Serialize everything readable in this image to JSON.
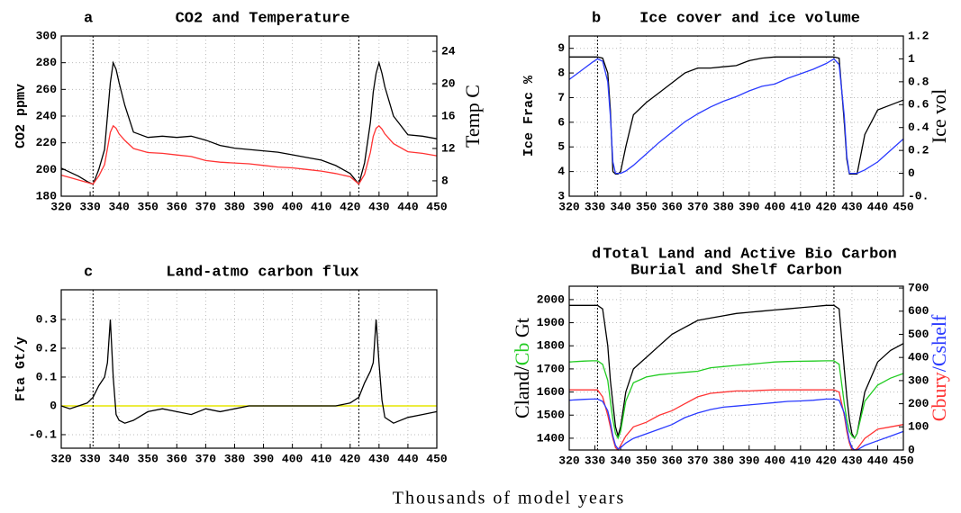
{
  "xlabel": "Thousands of model years",
  "chart_data": [
    {
      "type": "line",
      "label": "a",
      "title": "CO2 and Temperature",
      "ylabel": "CO2 ppmv",
      "y2label": "Temp C",
      "y2label_color": "#ff3333",
      "x": [
        320,
        323,
        326,
        329,
        331,
        333,
        335,
        336,
        337,
        338,
        339,
        340,
        342,
        345,
        350,
        355,
        360,
        365,
        370,
        375,
        380,
        385,
        390,
        395,
        400,
        405,
        410,
        415,
        420,
        423,
        425,
        427,
        428,
        429,
        430,
        431,
        432,
        435,
        440,
        445,
        450
      ],
      "series": [
        {
          "name": "CO2",
          "color": "#000000",
          "values": [
            201,
            198,
            195,
            191,
            189,
            200,
            215,
            240,
            265,
            280,
            275,
            265,
            248,
            228,
            224,
            225,
            224,
            225,
            222,
            218,
            216,
            215,
            214,
            213,
            211,
            209,
            207,
            203,
            197,
            189,
            205,
            235,
            258,
            272,
            280,
            272,
            262,
            240,
            226,
            225,
            223
          ]
        },
        {
          "name": "Temp",
          "color": "#ff3333",
          "axis": "y2",
          "values": [
            8.7,
            8.4,
            8.1,
            7.8,
            7.6,
            8.6,
            10.0,
            12,
            14,
            14.8,
            14.5,
            13.8,
            13.0,
            12.0,
            11.5,
            11.4,
            11.2,
            11.0,
            10.5,
            10.3,
            10.2,
            10.1,
            9.9,
            9.7,
            9.6,
            9.4,
            9.2,
            8.9,
            8.5,
            7.6,
            8.8,
            11.5,
            13.5,
            14.5,
            14.8,
            14.4,
            13.8,
            12.6,
            11.6,
            11.4,
            11.1
          ]
        }
      ],
      "xlim": [
        320,
        450
      ],
      "xticks": [
        320,
        330,
        340,
        350,
        360,
        370,
        380,
        390,
        400,
        410,
        420,
        430,
        440,
        450
      ],
      "ylim": [
        180,
        300
      ],
      "yticks": [
        180,
        200,
        220,
        240,
        260,
        280,
        300
      ],
      "y2lim": [
        6.1,
        25.9
      ],
      "y2ticks": [
        8,
        12,
        16,
        20,
        24
      ],
      "vlines": [
        331,
        423
      ],
      "grid": true
    },
    {
      "type": "line",
      "label": "b",
      "title": "Ice cover and ice volume",
      "ylabel": "Ice Frac %",
      "y2label": "Ice vol",
      "y2label_color": "#2a3aff",
      "x": [
        320,
        323,
        326,
        329,
        331,
        333,
        335,
        336,
        337,
        338,
        339,
        340,
        342,
        345,
        350,
        355,
        360,
        365,
        370,
        375,
        380,
        385,
        390,
        395,
        400,
        405,
        410,
        415,
        420,
        423,
        425,
        427,
        428,
        429,
        430,
        431,
        432,
        435,
        440,
        445,
        450
      ],
      "series": [
        {
          "name": "Ice Frac",
          "color": "#000000",
          "values": [
            8.65,
            8.65,
            8.65,
            8.65,
            8.65,
            8.6,
            8.0,
            6.5,
            4.0,
            3.9,
            3.9,
            4.0,
            5.0,
            6.3,
            6.8,
            7.2,
            7.6,
            8.0,
            8.2,
            8.2,
            8.25,
            8.3,
            8.5,
            8.6,
            8.65,
            8.65,
            8.65,
            8.65,
            8.65,
            8.65,
            8.6,
            6.0,
            4.5,
            3.9,
            3.9,
            3.9,
            3.9,
            5.5,
            6.5,
            6.7,
            6.9
          ]
        },
        {
          "name": "Ice vol",
          "color": "#2a3aff",
          "axis": "y2",
          "values": [
            0.82,
            0.87,
            0.92,
            0.97,
            1.0,
            0.98,
            0.8,
            0.5,
            0.1,
            0,
            0,
            0,
            0.02,
            0.07,
            0.17,
            0.27,
            0.36,
            0.45,
            0.52,
            0.58,
            0.63,
            0.67,
            0.72,
            0.76,
            0.78,
            0.83,
            0.87,
            0.91,
            0.96,
            1.0,
            0.95,
            0.5,
            0.15,
            0,
            0,
            0,
            0,
            0.03,
            0.1,
            0.2,
            0.3
          ]
        }
      ],
      "xlim": [
        320,
        450
      ],
      "xticks": [
        320,
        330,
        340,
        350,
        360,
        370,
        380,
        390,
        400,
        410,
        420,
        430,
        440,
        450
      ],
      "ylim": [
        3,
        9.5
      ],
      "yticks": [
        3,
        4,
        5,
        6,
        7,
        8,
        9
      ],
      "y2lim": [
        -0.2,
        1.2
      ],
      "y2ticks": [
        {
          "value": -0.2,
          "label": "-0."
        },
        0,
        0.2,
        0.4,
        0.6,
        0.8,
        1,
        1.2
      ],
      "vlines": [
        331,
        423
      ],
      "grid": true
    },
    {
      "type": "line",
      "label": "c",
      "title": "Land-atmo carbon flux",
      "ylabel": "Fta Gt/y",
      "x": [
        320,
        323,
        326,
        329,
        331,
        333,
        335,
        336,
        337,
        338,
        339,
        340,
        342,
        345,
        350,
        355,
        360,
        365,
        370,
        375,
        380,
        385,
        390,
        395,
        400,
        405,
        410,
        415,
        420,
        423,
        425,
        427,
        428,
        429,
        430,
        431,
        432,
        435,
        440,
        445,
        450
      ],
      "series": [
        {
          "name": "Fta",
          "color": "#000000",
          "values": [
            0,
            -0.01,
            0,
            0.01,
            0.03,
            0.07,
            0.1,
            0.15,
            0.3,
            0.1,
            -0.03,
            -0.05,
            -0.06,
            -0.05,
            -0.02,
            -0.01,
            -0.02,
            -0.03,
            -0.01,
            -0.02,
            -0.01,
            0,
            0,
            0,
            0,
            0,
            0,
            0,
            0.01,
            0.03,
            0.08,
            0.12,
            0.15,
            0.3,
            0.15,
            0.02,
            -0.04,
            -0.06,
            -0.04,
            -0.03,
            -0.02
          ]
        }
      ],
      "xlim": [
        320,
        450
      ],
      "xticks": [
        320,
        330,
        340,
        350,
        360,
        370,
        380,
        390,
        400,
        410,
        420,
        430,
        440,
        450
      ],
      "ylim": [
        -0.147,
        0.403
      ],
      "yticks": [
        -0.1,
        0,
        0.1,
        0.2,
        0.3
      ],
      "hline": 0,
      "hline_color": "#e6e600",
      "vlines": [
        331,
        423
      ],
      "grid": true
    },
    {
      "type": "line",
      "label": "d",
      "title": "Total Land and Active Bio Carbon",
      "subtitle": "Burial and Shelf Carbon",
      "ylabel": [
        "Cland/",
        "Cb",
        " Gt"
      ],
      "ylabel_colors": [
        "#000000",
        "#22cc22",
        "#000000"
      ],
      "y2label": [
        "Cbury",
        "/",
        "Cshelf"
      ],
      "y2label_colors": [
        "#ff3333",
        "#2a3aff",
        "#2a3aff"
      ],
      "x": [
        320,
        323,
        326,
        329,
        331,
        333,
        335,
        336,
        337,
        338,
        339,
        340,
        342,
        345,
        350,
        355,
        360,
        365,
        370,
        375,
        380,
        385,
        390,
        395,
        400,
        405,
        410,
        415,
        420,
        423,
        425,
        427,
        428,
        429,
        430,
        431,
        432,
        435,
        440,
        445,
        450
      ],
      "series": [
        {
          "name": "Cland",
          "color": "#000000",
          "values": [
            1975,
            1975,
            1975,
            1975,
            1975,
            1960,
            1800,
            1650,
            1550,
            1450,
            1410,
            1450,
            1600,
            1700,
            1750,
            1800,
            1850,
            1880,
            1910,
            1920,
            1930,
            1940,
            1945,
            1950,
            1955,
            1960,
            1965,
            1970,
            1975,
            1975,
            1960,
            1700,
            1580,
            1480,
            1420,
            1400,
            1420,
            1600,
            1730,
            1780,
            1810
          ]
        },
        {
          "name": "Cb",
          "color": "#22cc22",
          "values": [
            1730,
            1732,
            1734,
            1735,
            1735,
            1720,
            1650,
            1560,
            1480,
            1420,
            1400,
            1430,
            1560,
            1640,
            1665,
            1675,
            1680,
            1685,
            1690,
            1705,
            1710,
            1715,
            1720,
            1725,
            1730,
            1732,
            1733,
            1734,
            1735,
            1735,
            1720,
            1550,
            1480,
            1430,
            1410,
            1400,
            1420,
            1560,
            1630,
            1660,
            1680
          ]
        },
        {
          "name": "Cbury",
          "color": "#ff3333",
          "axis": "y2",
          "values": [
            260,
            260,
            260,
            260,
            260,
            230,
            150,
            100,
            50,
            10,
            0,
            20,
            60,
            100,
            120,
            150,
            170,
            200,
            230,
            245,
            250,
            255,
            255,
            258,
            260,
            260,
            260,
            260,
            260,
            260,
            250,
            150,
            80,
            30,
            0,
            0,
            5,
            50,
            90,
            100,
            110
          ]
        },
        {
          "name": "Cshelf",
          "color": "#2a3aff",
          "axis": "y2",
          "values": [
            215,
            217,
            219,
            220,
            220,
            210,
            170,
            120,
            60,
            20,
            5,
            10,
            30,
            50,
            70,
            90,
            110,
            140,
            160,
            175,
            185,
            190,
            195,
            200,
            205,
            210,
            212,
            215,
            220,
            220,
            215,
            160,
            100,
            40,
            10,
            0,
            0,
            20,
            40,
            60,
            80
          ]
        }
      ],
      "xlim": [
        320,
        450
      ],
      "xticks": [
        320,
        330,
        340,
        350,
        360,
        370,
        380,
        390,
        400,
        410,
        420,
        430,
        440,
        450
      ],
      "ylim": [
        1349,
        2058
      ],
      "yticks": [
        1400,
        1500,
        1600,
        1700,
        1800,
        1900,
        2000
      ],
      "y2lim": [
        0,
        708
      ],
      "y2ticks": [
        0,
        100,
        200,
        300,
        400,
        500,
        600,
        700
      ],
      "vlines": [
        331,
        423
      ],
      "grid": true
    }
  ]
}
